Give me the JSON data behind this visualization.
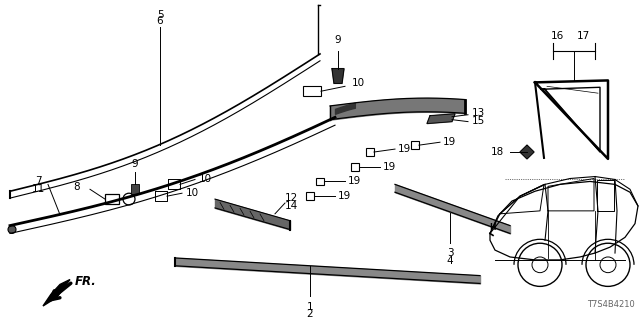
{
  "bg_color": "#ffffff",
  "part_number": "T7S4B4210",
  "line_color": "#000000",
  "gray_dark": "#333333",
  "gray_med": "#666666",
  "gray_light": "#999999"
}
